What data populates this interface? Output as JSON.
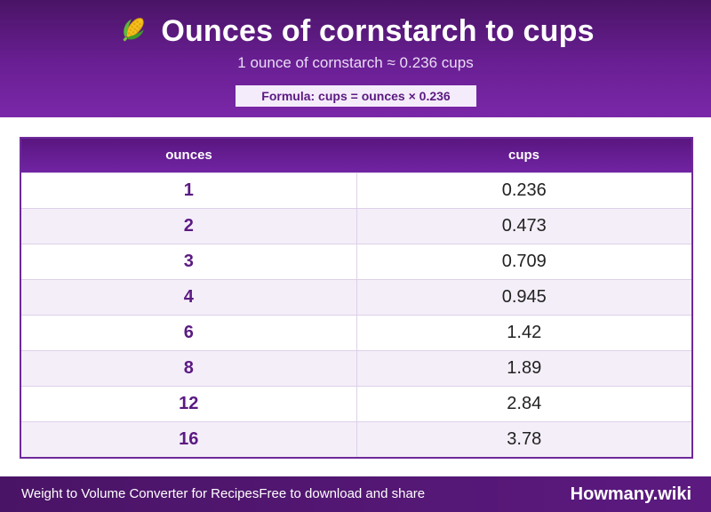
{
  "header": {
    "icon": "corn-icon",
    "title": "Ounces of cornstarch to cups",
    "subtitle": "1 ounce of cornstarch ≈ 0.236 cups",
    "formula": "Formula: cups = ounces × 0.236"
  },
  "table": {
    "headers": [
      "ounces",
      "cups"
    ],
    "rows": [
      {
        "ounces": "1",
        "cups": "0.236"
      },
      {
        "ounces": "2",
        "cups": "0.473"
      },
      {
        "ounces": "3",
        "cups": "0.709"
      },
      {
        "ounces": "4",
        "cups": "0.945"
      },
      {
        "ounces": "6",
        "cups": "1.42"
      },
      {
        "ounces": "8",
        "cups": "1.89"
      },
      {
        "ounces": "12",
        "cups": "2.84"
      },
      {
        "ounces": "16",
        "cups": "3.78"
      }
    ]
  },
  "footer": {
    "left_text_1": "Weight to Volume Converter for Recipes",
    "left_text_2": "Free to download and share",
    "brand": "Howmany.wiki"
  },
  "colors": {
    "header_purple": "#6a1f94",
    "accent_text": "#5b1a82",
    "row_alt": "#f4eef9"
  }
}
